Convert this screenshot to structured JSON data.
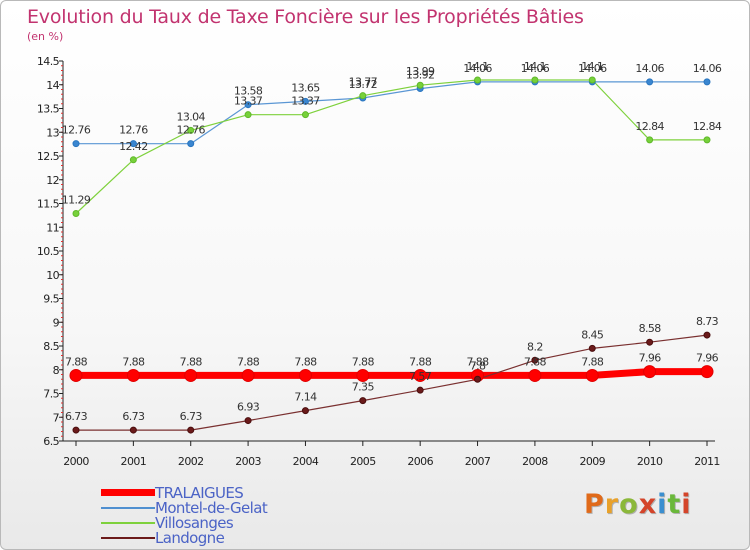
{
  "colors": {
    "title": "#c2336f",
    "TRALAIGUES": "#ff0000",
    "Montel-de-Gelat": "#4f8fd0",
    "Villosanges": "#7ed13c",
    "Landogne": "#6b1a1a",
    "brand": [
      "#e06a1a",
      "#e8a12a",
      "#8bb83a",
      "#d4442a",
      "#3a8fd0",
      "#6ab83a",
      "#d4442a"
    ]
  },
  "brand": {
    "text": "Proxiti",
    "letters": [
      "P",
      "r",
      "o",
      "x",
      "i",
      "t",
      "i"
    ]
  },
  "chart_data": {
    "type": "line",
    "title": "Evolution du Taux de Taxe Foncière sur les Propriétés Bâties",
    "subtitle": "(en %)",
    "xlabel": "",
    "ylabel": "",
    "categories": [
      "2000",
      "2001",
      "2002",
      "2003",
      "2004",
      "2005",
      "2006",
      "2007",
      "2008",
      "2009",
      "2010",
      "2011"
    ],
    "ylim": [
      6.5,
      14.5
    ],
    "yticks": [
      "6.5",
      "7",
      "7.5",
      "8",
      "8.5",
      "9",
      "9.5",
      "10",
      "10.5",
      "11",
      "11.5",
      "12",
      "12.5",
      "13",
      "13.5",
      "14",
      "14.5"
    ],
    "grid": false,
    "legend_position": "bottom-left",
    "series": [
      {
        "name": "TRALAIGUES",
        "values": [
          7.88,
          7.88,
          7.88,
          7.88,
          7.88,
          7.88,
          7.88,
          7.88,
          7.88,
          7.88,
          7.96,
          7.96
        ],
        "labels": [
          "7.88",
          "7.88",
          "7.88",
          "7.88",
          "7.88",
          "7.88",
          "7.88",
          "7.88",
          "7.88",
          "7.88",
          "7.96",
          "7.96"
        ]
      },
      {
        "name": "Montel-de-Gelat",
        "values": [
          12.76,
          12.76,
          12.76,
          13.58,
          13.65,
          13.72,
          13.92,
          14.06,
          14.06,
          14.06,
          14.06,
          14.06
        ],
        "labels": [
          "12.76",
          "12.76",
          "12.76",
          "13.58",
          "13.65",
          "13.72",
          "13.92",
          "14.06",
          "14.06",
          "14.06",
          "14.06",
          "14.06"
        ]
      },
      {
        "name": "Villosanges",
        "values": [
          11.29,
          12.42,
          13.04,
          13.37,
          13.37,
          13.77,
          13.99,
          14.1,
          14.1,
          14.1,
          12.84,
          12.84
        ],
        "labels": [
          "11.29",
          "12.42",
          "13.04",
          "13.37",
          "13.37",
          "13.77",
          "13.99",
          "14.1",
          "14.1",
          "14.1",
          "12.84",
          "12.84"
        ]
      },
      {
        "name": "Landogne",
        "values": [
          6.73,
          6.73,
          6.73,
          6.93,
          7.14,
          7.35,
          7.57,
          7.8,
          8.2,
          8.45,
          8.58,
          8.73
        ],
        "labels": [
          "6.73",
          "6.73",
          "6.73",
          "6.93",
          "7.14",
          "7.35",
          "7.57",
          "7.8",
          "8.2",
          "8.45",
          "8.58",
          "8.73"
        ]
      }
    ]
  }
}
